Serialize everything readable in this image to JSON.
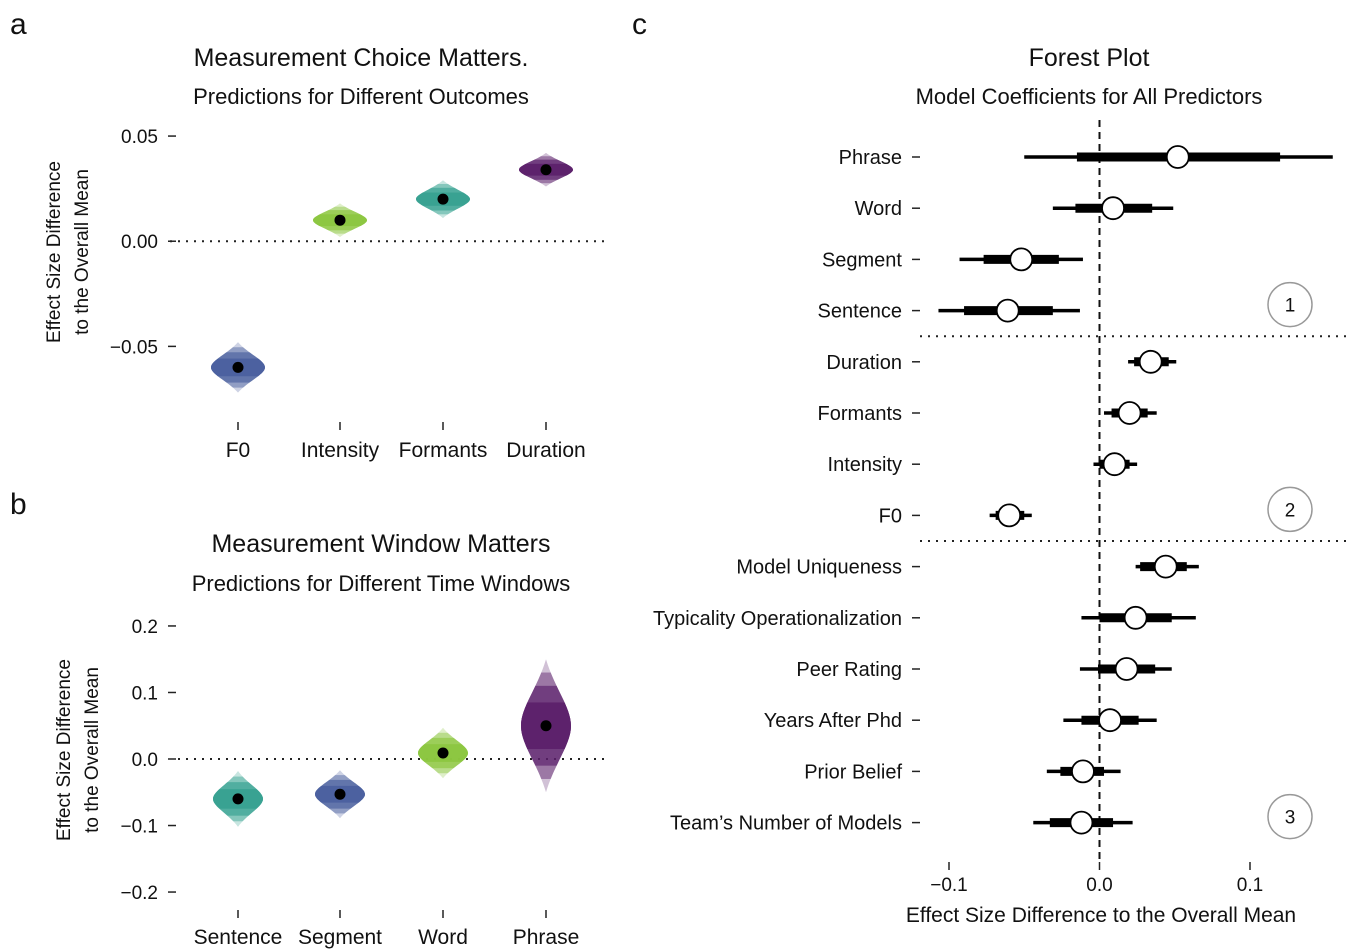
{
  "panels": [
    {
      "letter": "a",
      "title": "Measurement Choice Matters.",
      "subtitle": "Predictions for Different Outcomes",
      "ylabel_line1": "Effect Size Difference",
      "ylabel_line2": "to the Overall Mean",
      "y_ticks": [
        {
          "value": 0.05,
          "label": "0.05"
        },
        {
          "value": 0.0,
          "label": "0.00"
        },
        {
          "value": -0.05,
          "label": "−0.05"
        }
      ]
    },
    {
      "letter": "b",
      "title": "Measurement Window Matters",
      "subtitle": "Predictions for Different Time Windows",
      "ylabel_line1": "Effect Size Difference",
      "ylabel_line2": "to the Overall Mean",
      "y_ticks": [
        {
          "value": 0.2,
          "label": "0.2"
        },
        {
          "value": 0.1,
          "label": "0.1"
        },
        {
          "value": 0.0,
          "label": "0.0"
        },
        {
          "value": -0.1,
          "label": "−0.1"
        },
        {
          "value": -0.2,
          "label": "−0.2"
        }
      ]
    },
    {
      "letter": "c",
      "title": "Forest Plot",
      "subtitle": "Model Coefficients for All Predictors",
      "xlabel": "Effect Size Difference to the Overall Mean",
      "x_ticks": [
        {
          "value": -0.1,
          "label": "−0.1"
        },
        {
          "value": 0.0,
          "label": "0.0"
        },
        {
          "value": 0.1,
          "label": "0.1"
        }
      ],
      "group_labels": [
        "1",
        "2",
        "3"
      ]
    }
  ],
  "chart_data": [
    {
      "type": "scatter",
      "panel": "a",
      "title": "Measurement Choice Matters.",
      "subtitle": "Predictions for Different Outcomes",
      "xlabel": "",
      "ylabel": "Effect Size Difference to the Overall Mean",
      "ylim": [
        -0.085,
        0.07
      ],
      "reference_line": 0.0,
      "categories": [
        "F0",
        "Intensity",
        "Formants",
        "Duration"
      ],
      "series": [
        {
          "values": [
            -0.06,
            0.01,
            0.02,
            0.034
          ],
          "spread": [
            0.012,
            0.008,
            0.009,
            0.008
          ],
          "colors": [
            "#4a5f9e",
            "#8cc63f",
            "#36a190",
            "#5b1f6a"
          ]
        }
      ]
    },
    {
      "type": "scatter",
      "panel": "b",
      "title": "Measurement Window Matters",
      "subtitle": "Predictions for Different Time Windows",
      "xlabel": "",
      "ylabel": "Effect Size Difference to the Overall Mean",
      "ylim": [
        -0.23,
        0.23
      ],
      "reference_line": 0.0,
      "categories": [
        "Sentence",
        "Segment",
        "Word",
        "Phrase"
      ],
      "series": [
        {
          "values": [
            -0.06,
            -0.053,
            0.009,
            0.05
          ],
          "spread": [
            0.042,
            0.036,
            0.038,
            0.1
          ],
          "colors": [
            "#36a190",
            "#4a5f9e",
            "#8cc63f",
            "#5b1f6a"
          ]
        }
      ]
    },
    {
      "type": "scatter",
      "panel": "c",
      "title": "Forest Plot",
      "subtitle": "Model Coefficients for All Predictors",
      "xlabel": "Effect Size Difference to the Overall Mean",
      "xlim": [
        -0.14,
        0.165
      ],
      "reference_line": 0.0,
      "rows": [
        {
          "label": "Phrase",
          "group": 1,
          "estimate": 0.052,
          "inner": [
            -0.015,
            0.12
          ],
          "outer": [
            -0.05,
            0.155
          ]
        },
        {
          "label": "Word",
          "group": 1,
          "estimate": 0.009,
          "inner": [
            -0.016,
            0.035
          ],
          "outer": [
            -0.031,
            0.049
          ]
        },
        {
          "label": "Segment",
          "group": 1,
          "estimate": -0.052,
          "inner": [
            -0.077,
            -0.027
          ],
          "outer": [
            -0.093,
            -0.011
          ]
        },
        {
          "label": "Sentence",
          "group": 1,
          "estimate": -0.061,
          "inner": [
            -0.09,
            -0.031
          ],
          "outer": [
            -0.107,
            -0.013
          ]
        },
        {
          "label": "Duration",
          "group": 2,
          "estimate": 0.034,
          "inner": [
            0.023,
            0.046
          ],
          "outer": [
            0.019,
            0.051
          ]
        },
        {
          "label": "Formants",
          "group": 2,
          "estimate": 0.02,
          "inner": [
            0.008,
            0.032
          ],
          "outer": [
            0.003,
            0.038
          ]
        },
        {
          "label": "Intensity",
          "group": 2,
          "estimate": 0.01,
          "inner": [
            0.0,
            0.02
          ],
          "outer": [
            -0.004,
            0.025
          ]
        },
        {
          "label": "F0",
          "group": 2,
          "estimate": -0.06,
          "inner": [
            -0.069,
            -0.05
          ],
          "outer": [
            -0.073,
            -0.045
          ]
        },
        {
          "label": "Model Uniqueness",
          "group": 3,
          "estimate": 0.044,
          "inner": [
            0.027,
            0.058
          ],
          "outer": [
            0.024,
            0.066
          ]
        },
        {
          "label": "Typicality Operationalization",
          "group": 3,
          "estimate": 0.024,
          "inner": [
            0.0,
            0.048
          ],
          "outer": [
            -0.012,
            0.064
          ]
        },
        {
          "label": "Peer Rating",
          "group": 3,
          "estimate": 0.018,
          "inner": [
            -0.001,
            0.037
          ],
          "outer": [
            -0.013,
            0.048
          ]
        },
        {
          "label": "Years After Phd",
          "group": 3,
          "estimate": 0.007,
          "inner": [
            -0.012,
            0.026
          ],
          "outer": [
            -0.024,
            0.038
          ]
        },
        {
          "label": "Prior Belief",
          "group": 3,
          "estimate": -0.011,
          "inner": [
            -0.026,
            0.003
          ],
          "outer": [
            -0.035,
            0.014
          ]
        },
        {
          "label": "Team’s Number of Models",
          "group": 3,
          "estimate": -0.012,
          "inner": [
            -0.033,
            0.009
          ],
          "outer": [
            -0.044,
            0.022
          ]
        }
      ]
    }
  ]
}
